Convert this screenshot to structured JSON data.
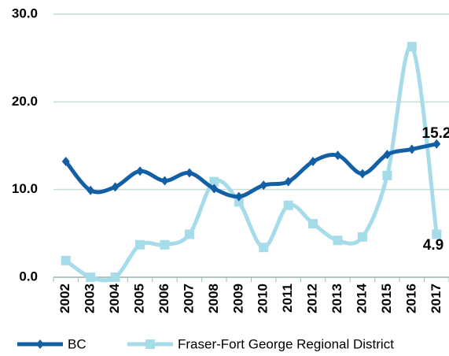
{
  "chart_data": {
    "type": "line",
    "categories": [
      "2002",
      "2003",
      "2004",
      "2005",
      "2006",
      "2007",
      "2008",
      "2009",
      "2010",
      "2011",
      "2012",
      "2013",
      "2014",
      "2015",
      "2016",
      "2017"
    ],
    "series": [
      {
        "name": "BC",
        "color": "#135fa6",
        "marker": "diamond",
        "values": [
          13.2,
          9.9,
          10.3,
          12.1,
          11.0,
          11.9,
          10.1,
          9.2,
          10.5,
          10.9,
          13.2,
          13.9,
          11.8,
          14.0,
          14.6,
          15.2
        ]
      },
      {
        "name": "Fraser-Fort George Regional District",
        "color": "#a6dcea",
        "marker": "square",
        "values": [
          1.9,
          0.0,
          0.0,
          3.7,
          3.7,
          4.9,
          10.9,
          8.6,
          3.4,
          8.2,
          6.1,
          4.2,
          4.6,
          11.6,
          26.3,
          4.9
        ]
      }
    ],
    "ylim": [
      0,
      30
    ],
    "yticks": [
      {
        "value": 0,
        "label": "0.0"
      },
      {
        "value": 10,
        "label": "10.0"
      },
      {
        "value": 20,
        "label": "20.0"
      },
      {
        "value": 30,
        "label": "30.0"
      }
    ],
    "grid": true,
    "legend": "bottom"
  }
}
